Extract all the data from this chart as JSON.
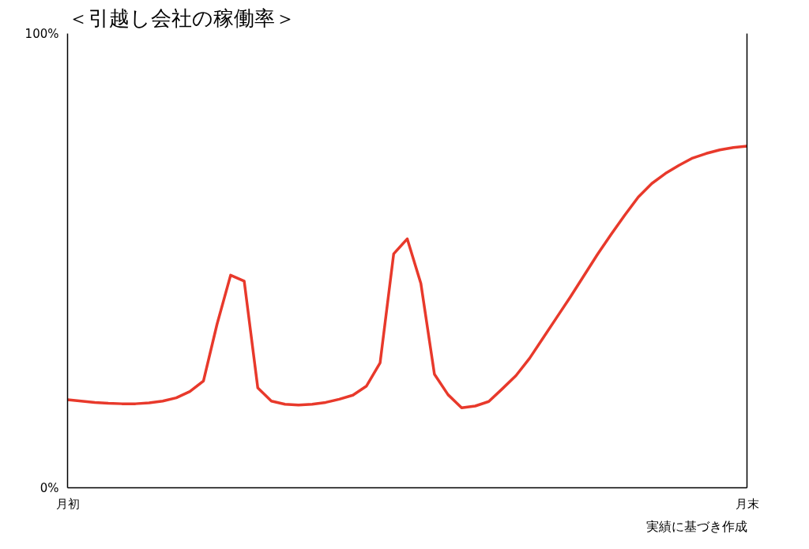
{
  "chart_data": {
    "type": "line",
    "title": "＜引越し会社の稼働率＞",
    "annotations": [
      "実績に基づき作成"
    ],
    "categories": [
      "月初",
      null,
      null,
      null,
      null,
      null,
      null,
      null,
      null,
      null,
      null,
      null,
      null,
      null,
      null,
      null,
      null,
      null,
      null,
      null,
      null,
      null,
      null,
      null,
      null,
      null,
      null,
      null,
      null,
      null,
      null,
      null,
      null,
      null,
      null,
      null,
      null,
      null,
      null,
      null,
      null,
      null,
      null,
      null,
      null,
      null,
      null,
      null,
      null,
      null,
      "月末"
    ],
    "series": [
      {
        "color": "#e8392b",
        "values": [
          19.4,
          19.1,
          18.8,
          18.6,
          18.5,
          18.5,
          18.7,
          19.1,
          19.8,
          21.2,
          23.5,
          36,
          46.8,
          45.5,
          22,
          19.1,
          18.4,
          18.2,
          18.4,
          18.8,
          19.5,
          20.4,
          22.4,
          27.5,
          51.5,
          54.8,
          45,
          25,
          20.5,
          17.6,
          18,
          19,
          21.8,
          24.7,
          28.5,
          33,
          37.5,
          42,
          46.7,
          51.4,
          55.8,
          60,
          64,
          67,
          69.2,
          71,
          72.6,
          73.6,
          74.4,
          74.9,
          75.2
        ]
      }
    ],
    "ylim": [
      0,
      100
    ],
    "yticks": [
      {
        "value": 0,
        "label": "0%"
      },
      {
        "value": 100,
        "label": "100%"
      }
    ],
    "marker": "none",
    "line_style": "solid"
  }
}
